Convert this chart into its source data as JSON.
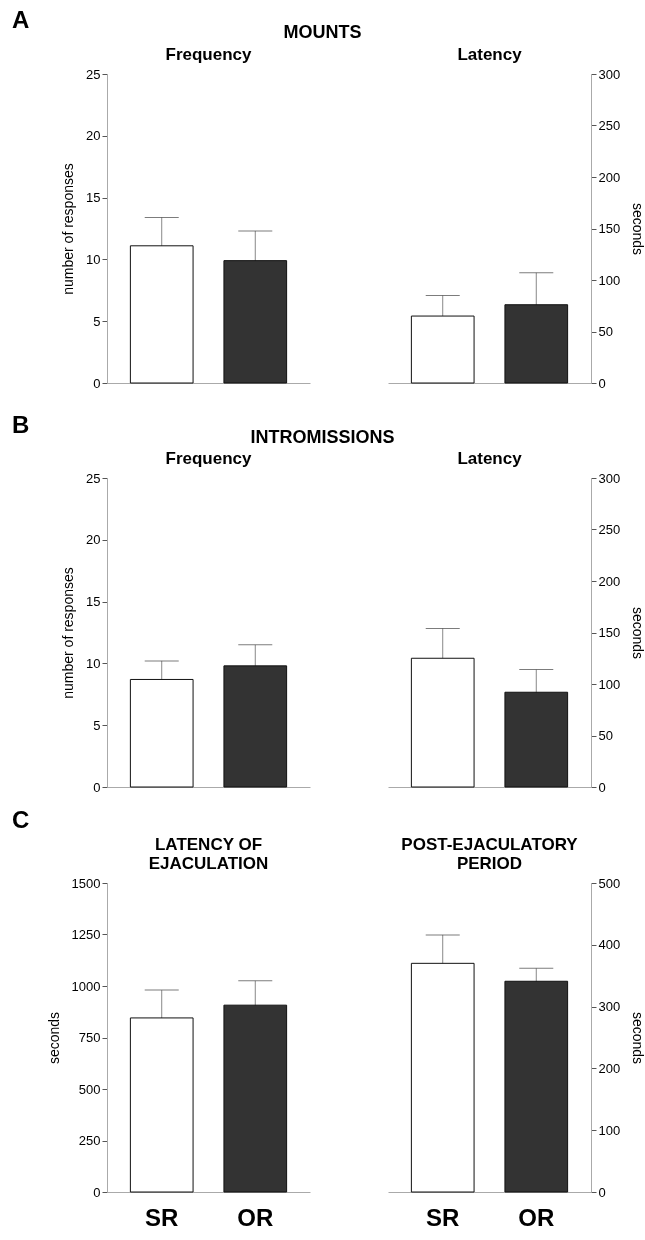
{
  "chart_data": [
    {
      "type": "bar",
      "title": "Frequency",
      "annotations": [
        "A",
        "MOUNTS"
      ],
      "categories": [
        null,
        null
      ],
      "values": [
        11.1,
        9.9
      ],
      "errors": [
        2.3,
        2.4
      ],
      "colors": [
        "#ffffff",
        "#333333"
      ],
      "ylabel": "number of responses",
      "ylim": [
        0,
        25
      ],
      "yticks": [
        0,
        5,
        10,
        15,
        20,
        25
      ],
      "tick_labels": "y"
    },
    {
      "type": "bar",
      "title": "Latency",
      "categories": [
        null,
        null
      ],
      "series": [
        {
          "axis": "y2",
          "values": [
            65,
            76
          ],
          "errors": [
            20,
            31
          ]
        }
      ],
      "colors": [
        "#ffffff",
        "#333333"
      ],
      "y2label": "seconds",
      "y2lim": [
        0,
        300
      ],
      "y2ticks": [
        0,
        50,
        100,
        150,
        200,
        250,
        300
      ],
      "tick_labels": "y"
    },
    {
      "type": "bar",
      "title": "Frequency",
      "annotations": [
        "B",
        "INTROMISSIONS"
      ],
      "categories": [
        null,
        null
      ],
      "values": [
        8.7,
        9.8
      ],
      "errors": [
        1.5,
        1.7
      ],
      "colors": [
        "#ffffff",
        "#333333"
      ],
      "ylabel": "number of responses",
      "ylim": [
        0,
        25
      ],
      "yticks": [
        0,
        5,
        10,
        15,
        20,
        25
      ],
      "tick_labels": "y"
    },
    {
      "type": "bar",
      "title": "Latency",
      "categories": [
        null,
        null
      ],
      "series": [
        {
          "axis": "y2",
          "values": [
            125,
            92
          ],
          "errors": [
            29,
            22
          ]
        }
      ],
      "colors": [
        "#ffffff",
        "#333333"
      ],
      "y2label": "seconds",
      "y2lim": [
        0,
        300
      ],
      "y2ticks": [
        0,
        50,
        100,
        150,
        200,
        250,
        300
      ],
      "tick_labels": "y"
    },
    {
      "type": "bar",
      "title": "LATENCY OF EJACULATION",
      "annotations": [
        "C"
      ],
      "categories": [
        "SR",
        "OR"
      ],
      "values": [
        845,
        907
      ],
      "errors": [
        135,
        118
      ],
      "colors": [
        "#ffffff",
        "#333333"
      ],
      "ylabel": "seconds",
      "ylim": [
        0,
        1500
      ],
      "yticks": [
        0,
        250,
        500,
        750,
        1000,
        1250,
        1500
      ]
    },
    {
      "type": "bar",
      "title": "POST-EJACULATORY PERIOD",
      "categories": [
        "SR",
        "OR"
      ],
      "series": [
        {
          "axis": "y2",
          "values": [
            370,
            341
          ],
          "errors": [
            46,
            21
          ]
        }
      ],
      "colors": [
        "#ffffff",
        "#333333"
      ],
      "y2label": "seconds",
      "y2lim": [
        0,
        500
      ],
      "y2ticks": [
        0,
        100,
        200,
        300,
        400,
        500
      ]
    }
  ]
}
